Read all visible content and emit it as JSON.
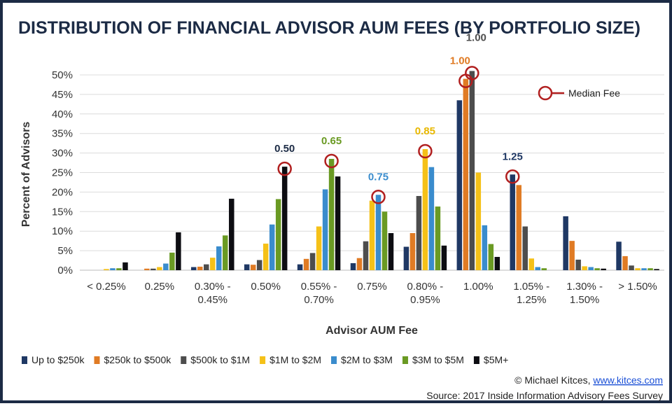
{
  "chart_data": {
    "type": "bar",
    "title": "DISTRIBUTION OF FINANCIAL ADVISOR AUM FEES (BY PORTFOLIO SIZE)",
    "xlabel": "Advisor AUM Fee",
    "ylabel": "Percent of Advisors",
    "ylim": [
      0,
      50
    ],
    "yticks": [
      "0%",
      "5%",
      "10%",
      "15%",
      "20%",
      "25%",
      "30%",
      "35%",
      "40%",
      "45%",
      "50%"
    ],
    "grid": true,
    "legend_position": "bottom",
    "categories": [
      [
        "< 0.25%"
      ],
      [
        "0.25%"
      ],
      [
        "0.30% -",
        "0.45%"
      ],
      [
        "0.50%"
      ],
      [
        "0.55% -",
        "0.70%"
      ],
      [
        "0.75%"
      ],
      [
        "0.80% -",
        "0.95%"
      ],
      [
        "1.00%"
      ],
      [
        "1.05% -",
        "1.25%"
      ],
      [
        "1.30% -",
        "1.50%"
      ],
      [
        "> 1.50%"
      ]
    ],
    "series": [
      {
        "name": "Up to $250k",
        "color": "#1f3864",
        "values": [
          0,
          0,
          0.8,
          1.5,
          1.5,
          1.8,
          6,
          43.5,
          24.5,
          13.8,
          7.3
        ]
      },
      {
        "name": "$250k to $500k",
        "color": "#e07b24",
        "values": [
          0,
          0.4,
          0.9,
          1.4,
          2.9,
          3.1,
          9.5,
          49,
          21.8,
          7.5,
          3.6
        ]
      },
      {
        "name": "$500k to $1M",
        "color": "#4d4d4d",
        "values": [
          0,
          0.4,
          1.5,
          2.6,
          4.4,
          7.4,
          19,
          51,
          11.2,
          2.7,
          1.2
        ]
      },
      {
        "name": "$1M to $2M",
        "color": "#f5c118",
        "values": [
          0.3,
          0.8,
          3.2,
          6.8,
          11.2,
          17.8,
          31,
          25,
          3,
          1,
          0.5
        ]
      },
      {
        "name": "$2M to $3M",
        "color": "#3a8ccd",
        "values": [
          0.5,
          1.7,
          6.1,
          11.7,
          20.7,
          19.3,
          26.4,
          11.5,
          0.8,
          0.8,
          0.5
        ]
      },
      {
        "name": "$3M to $5M",
        "color": "#6a9a23",
        "values": [
          0.5,
          4.5,
          8.9,
          18.2,
          28.5,
          15,
          16.3,
          6.7,
          0.5,
          0.5,
          0.5
        ]
      },
      {
        "name": "$5M+",
        "color": "#0d0d12",
        "values": [
          2,
          9.7,
          18.3,
          26.5,
          24,
          9.5,
          6.3,
          3.4,
          0,
          0.4,
          0.3
        ]
      }
    ],
    "medians": [
      {
        "label": "0.50",
        "series": 6,
        "category": 3,
        "color": "#1c2b45"
      },
      {
        "label": "0.65",
        "series": 5,
        "category": 4,
        "color": "#6a9a23"
      },
      {
        "label": "0.75",
        "series": 4,
        "category": 5,
        "color": "#3a8ccd"
      },
      {
        "label": "0.85",
        "series": 3,
        "category": 6,
        "color": "#e8b800"
      },
      {
        "label": "1.00",
        "series": 1,
        "category": 7,
        "color": "#e07b24"
      },
      {
        "label": "1.00",
        "series": 2,
        "category": 7,
        "color": "#4d4d4d"
      },
      {
        "label": "1.25",
        "series": 0,
        "category": 8,
        "color": "#1f3864"
      }
    ],
    "median_legend": "Median Fee",
    "marker_color": "#b11f1f"
  },
  "credits": {
    "copyright": "© Michael Kitces,",
    "link": "www.kitces.com",
    "source": "Source: 2017 Inside Information Advisory Fees Survey"
  }
}
